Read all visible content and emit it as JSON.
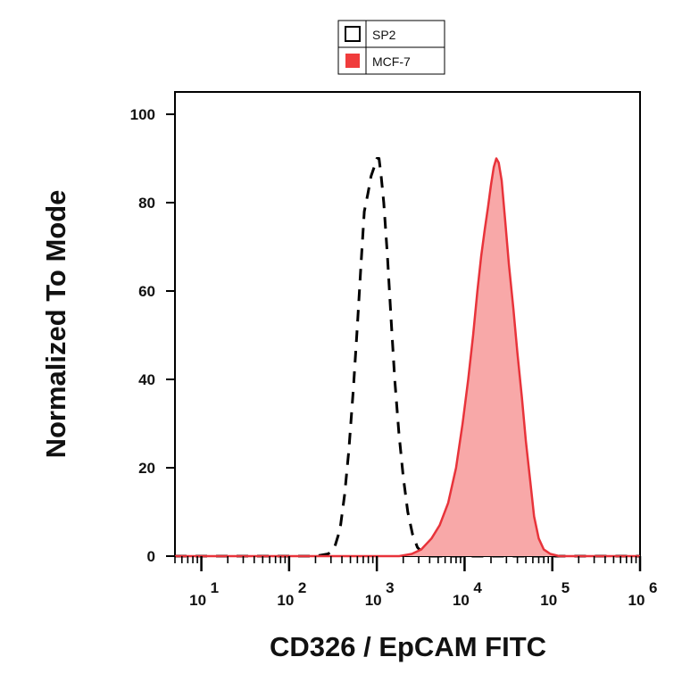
{
  "chart_data": {
    "type": "area",
    "xscale": "log",
    "xlim": [
      5,
      1000000
    ],
    "ylim": [
      0,
      100
    ],
    "xlabel": "CD326 / EpCAM FITC",
    "ylabel": "Normalized To Mode",
    "yticks": [
      "0",
      "20",
      "40",
      "60",
      "80",
      "100"
    ],
    "xticks": [
      {
        "base": "10",
        "exp": "1",
        "value": 10
      },
      {
        "base": "10",
        "exp": "2",
        "value": 100
      },
      {
        "base": "10",
        "exp": "3",
        "value": 1000
      },
      {
        "base": "10",
        "exp": "4",
        "value": 10000
      },
      {
        "base": "10",
        "exp": "5",
        "value": 100000
      },
      {
        "base": "10",
        "exp": "6",
        "value": 1000000
      }
    ],
    "legend_placement": "top-center",
    "series": [
      {
        "name": "SP2",
        "style": "dashed-outline",
        "color": "#000000",
        "fill": "none",
        "points": [
          [
            5,
            0
          ],
          [
            200,
            0
          ],
          [
            280,
            0.5
          ],
          [
            330,
            2
          ],
          [
            380,
            6
          ],
          [
            430,
            14
          ],
          [
            480,
            24
          ],
          [
            540,
            38
          ],
          [
            600,
            52
          ],
          [
            660,
            66
          ],
          [
            720,
            78
          ],
          [
            790,
            82
          ],
          [
            860,
            86
          ],
          [
            930,
            88
          ],
          [
            1000,
            90
          ],
          [
            1060,
            90
          ],
          [
            1120,
            86
          ],
          [
            1200,
            80
          ],
          [
            1320,
            68
          ],
          [
            1450,
            54
          ],
          [
            1600,
            40
          ],
          [
            1780,
            28
          ],
          [
            2000,
            18
          ],
          [
            2250,
            10
          ],
          [
            2550,
            5
          ],
          [
            2900,
            2
          ],
          [
            3400,
            0.5
          ],
          [
            4200,
            0
          ],
          [
            1000000,
            0
          ]
        ]
      },
      {
        "name": "MCF-7",
        "style": "filled",
        "color": "#e8333a",
        "fill": "#f8a8a8",
        "points": [
          [
            5,
            0
          ],
          [
            1800,
            0
          ],
          [
            2500,
            0.5
          ],
          [
            3200,
            1.5
          ],
          [
            4200,
            4
          ],
          [
            5200,
            7
          ],
          [
            6500,
            12
          ],
          [
            8000,
            20
          ],
          [
            9500,
            30
          ],
          [
            11000,
            40
          ],
          [
            12500,
            50
          ],
          [
            14000,
            60
          ],
          [
            15500,
            68
          ],
          [
            17000,
            74
          ],
          [
            18500,
            79
          ],
          [
            20000,
            84
          ],
          [
            21500,
            88
          ],
          [
            23000,
            90
          ],
          [
            24500,
            89
          ],
          [
            26500,
            85
          ],
          [
            29000,
            76
          ],
          [
            32000,
            66
          ],
          [
            36000,
            56
          ],
          [
            40000,
            46
          ],
          [
            45000,
            36
          ],
          [
            50000,
            26
          ],
          [
            56000,
            17
          ],
          [
            62000,
            9
          ],
          [
            70000,
            4
          ],
          [
            80000,
            1.5
          ],
          [
            95000,
            0.5
          ],
          [
            120000,
            0
          ],
          [
            1000000,
            0
          ]
        ]
      }
    ]
  },
  "legend": {
    "items": [
      {
        "label": "SP2",
        "swatch": "outline"
      },
      {
        "label": "MCF-7",
        "swatch": "#f03c3c"
      }
    ]
  }
}
